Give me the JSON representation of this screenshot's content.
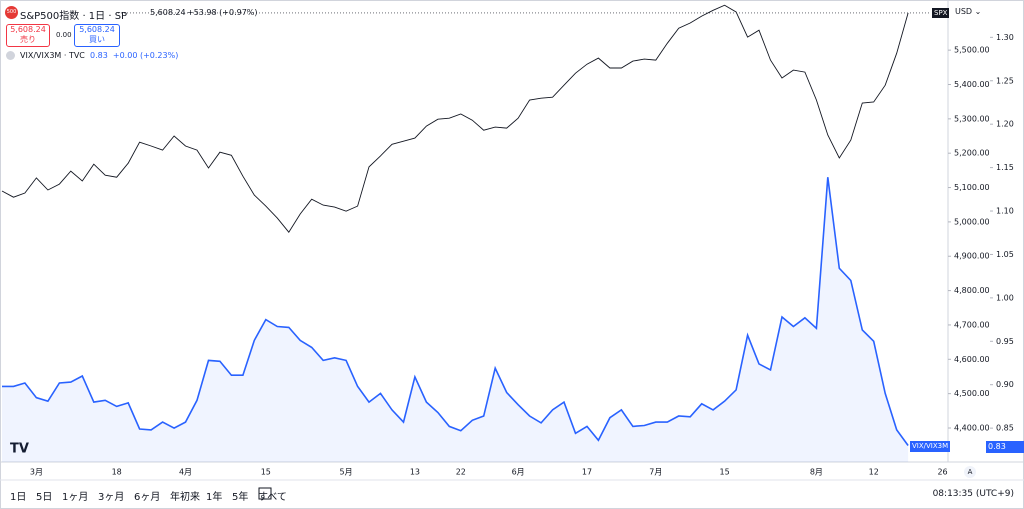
{
  "chart_data": {
    "type": "line",
    "categories": [
      null,
      null,
      null,
      "3月",
      null,
      null,
      null,
      null,
      null,
      null,
      "18",
      null,
      null,
      null,
      null,
      null,
      "4月",
      null,
      null,
      null,
      null,
      null,
      null,
      "15",
      null,
      null,
      null,
      null,
      null,
      null,
      "5月",
      null,
      null,
      null,
      null,
      null,
      "13",
      null,
      null,
      null,
      "22",
      null,
      null,
      null,
      null,
      "6月",
      null,
      null,
      null,
      null,
      null,
      "17",
      null,
      null,
      null,
      null,
      null,
      "7月",
      null,
      null,
      null,
      null,
      null,
      "15",
      null,
      null,
      null,
      null,
      null,
      null,
      null,
      "8月",
      null,
      null,
      null,
      null,
      "12",
      null,
      null,
      null,
      null,
      null,
      "26"
    ],
    "series": [
      {
        "name": "S&P500指数 · 1日 · SP",
        "color": "#131722",
        "values": [
          5090,
          5072,
          5084,
          5128,
          5093,
          5110,
          5148,
          5119,
          5168,
          5136,
          5130,
          5171,
          5232,
          5221,
          5209,
          5250,
          5221,
          5209,
          5157,
          5203,
          5194,
          5133,
          5078,
          5046,
          5011,
          4970,
          5023,
          5066,
          5049,
          5043,
          5031,
          5046,
          5160,
          5192,
          5226,
          5235,
          5244,
          5279,
          5299,
          5302,
          5314,
          5296,
          5267,
          5276,
          5273,
          5302,
          5355,
          5360,
          5363,
          5398,
          5433,
          5459,
          5477,
          5448,
          5448,
          5468,
          5474,
          5471,
          5520,
          5564,
          5579,
          5599,
          5616,
          5631,
          5611,
          5538,
          5558,
          5471,
          5419,
          5442,
          5436,
          5355,
          5253,
          5186,
          5238,
          5346,
          5349,
          5398,
          5491,
          5608.24,
          null,
          null,
          null
        ]
      },
      {
        "name": "VIX/VIX3M · TVC",
        "color": "#2962ff",
        "axis": "y2",
        "area": true,
        "values": [
          0.898,
          0.898,
          0.902,
          0.885,
          0.881,
          0.902,
          0.903,
          0.91,
          0.88,
          0.882,
          0.875,
          0.879,
          0.849,
          0.848,
          0.857,
          0.85,
          0.857,
          0.882,
          0.928,
          0.927,
          0.911,
          0.911,
          0.951,
          0.975,
          0.967,
          0.966,
          0.951,
          0.943,
          0.928,
          0.931,
          0.928,
          0.898,
          0.88,
          0.89,
          0.871,
          0.857,
          0.909,
          0.88,
          0.868,
          0.852,
          0.847,
          0.859,
          0.864,
          0.919,
          0.891,
          0.877,
          0.864,
          0.856,
          0.871,
          0.88,
          0.844,
          0.852,
          0.836,
          0.862,
          0.871,
          0.852,
          0.853,
          0.857,
          0.857,
          0.864,
          0.863,
          0.878,
          0.871,
          0.881,
          0.894,
          0.957,
          0.924,
          0.917,
          0.978,
          0.967,
          0.977,
          0.965,
          1.139,
          1.034,
          1.02,
          0.963,
          0.95,
          0.89,
          0.848,
          0.83,
          null,
          null,
          null
        ]
      }
    ],
    "ylim": [
      4301,
      5646
    ],
    "yticks": [
      {
        "value": 4400,
        "label": "4,400.00"
      },
      {
        "value": 4500,
        "label": "4,500.00"
      },
      {
        "value": 4600,
        "label": "4,600.00"
      },
      {
        "value": 4700,
        "label": "4,700.00"
      },
      {
        "value": 4800,
        "label": "4,800.00"
      },
      {
        "value": 4900,
        "label": "4,900.00"
      },
      {
        "value": 5000,
        "label": "5,000.00"
      },
      {
        "value": 5100,
        "label": "5,100.00"
      },
      {
        "value": 5200,
        "label": "5,200.00"
      },
      {
        "value": 5300,
        "label": "5,300.00"
      },
      {
        "value": 5400,
        "label": "5,400.00"
      },
      {
        "value": 5500,
        "label": "5,500.00"
      }
    ],
    "y2lim": [
      0.811,
      1.343
    ],
    "y2ticks": [
      0.85,
      {
        "value": 0.9,
        "label": "0.90"
      },
      0.95,
      {
        "value": 1,
        "label": "1.00"
      },
      1.05,
      {
        "value": 1.1,
        "label": "1.10"
      },
      1.15,
      {
        "value": 1.2,
        "label": "1.20"
      },
      1.25,
      {
        "value": 1.3,
        "label": "1.30"
      }
    ],
    "grid": false
  },
  "ui": {
    "logo": "500",
    "symbol": "S&P500指数 · 1日 · SP",
    "price": "5,608.24",
    "change": "+53.98 (+0.97%)",
    "sell_price": "5,608.24",
    "sell_label": "売り",
    "spread": "0.00",
    "buy_price": "5,608.24",
    "buy_label": "買い",
    "overlay_value": "0.83",
    "overlay_change": "+0.00 (+0.23%)",
    "price_tag": "SPX",
    "currency": "USD",
    "overlay_tag": "VIX/VIX3M",
    "overlay_tag_value": "0.83",
    "auto_button": "A",
    "ranges": [
      "1日",
      "5日",
      "1ヶ月",
      "3ヶ月",
      "6ヶ月",
      "年初来",
      "1年",
      "5年",
      "すべて"
    ],
    "clock": "08:13:35 (UTC+9)"
  }
}
